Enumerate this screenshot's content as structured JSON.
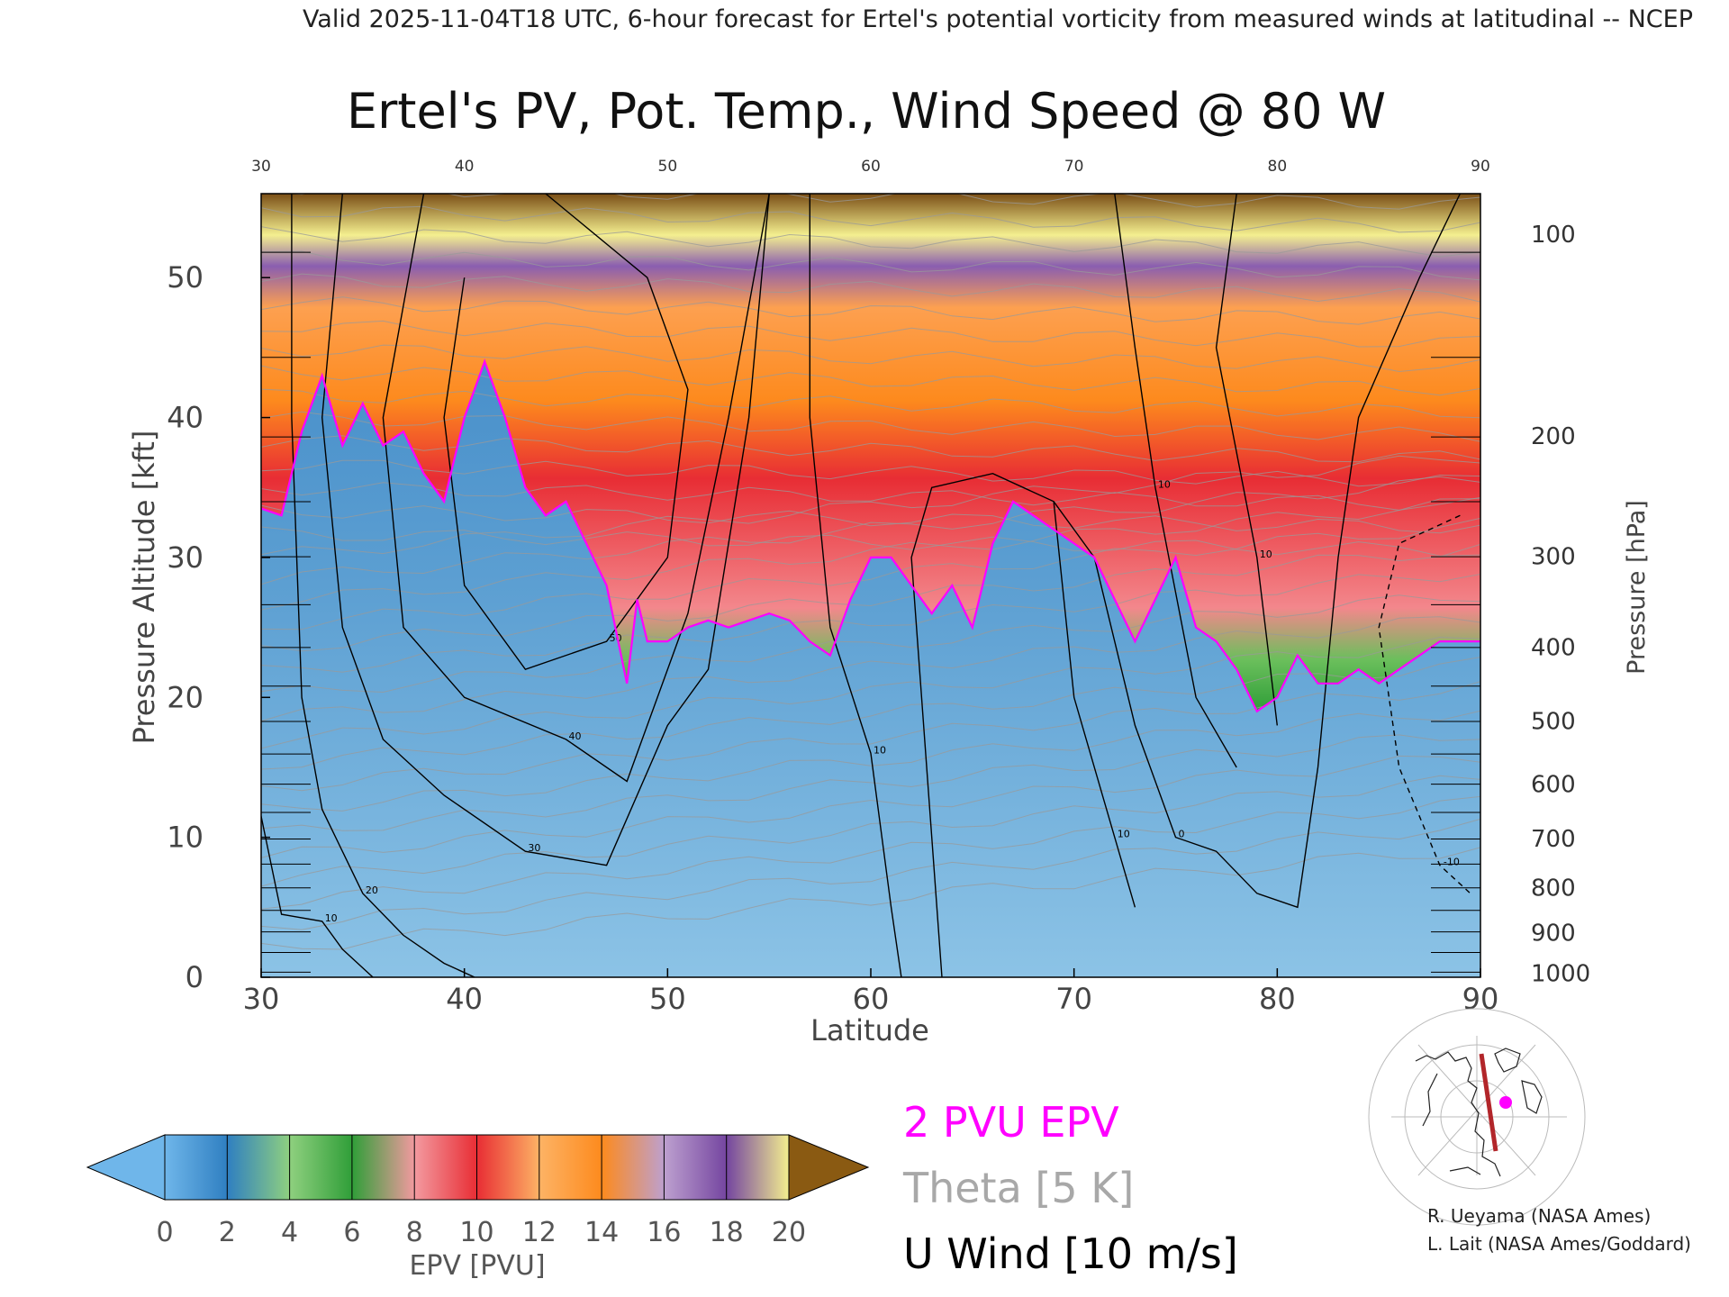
{
  "header": "Valid 2025-11-04T18 UTC, 6-hour forecast for Ertel's potential vorticity from measured winds at latitudinal -- NCEP",
  "title": "Ertel's PV, Pot. Temp., Wind Speed @ 80 W",
  "chart_data": {
    "type": "heatmap",
    "xlabel": "Latitude",
    "ylabel_left": "Pressure Altitude [kft]",
    "ylabel_right": "Pressure [hPa]",
    "xlim": [
      30,
      90
    ],
    "ylim": [
      0,
      56
    ],
    "x_ticks": [
      "30",
      "40",
      "50",
      "60",
      "70",
      "80",
      "90"
    ],
    "top_ticks": [
      "30",
      "40",
      "50",
      "60",
      "70",
      "80",
      "90"
    ],
    "y_ticks": [
      "0",
      "10",
      "20",
      "30",
      "40",
      "50"
    ],
    "pressure_ticks": [
      {
        "label": "100",
        "kft": 53.1
      },
      {
        "label": "200",
        "kft": 38.7
      },
      {
        "label": "300",
        "kft": 30.1
      },
      {
        "label": "400",
        "kft": 23.6
      },
      {
        "label": "500",
        "kft": 18.3
      },
      {
        "label": "600",
        "kft": 13.8
      },
      {
        "label": "700",
        "kft": 9.9
      },
      {
        "label": "800",
        "kft": 6.4
      },
      {
        "label": "900",
        "kft": 3.2
      },
      {
        "label": "1000",
        "kft": 0.3
      }
    ],
    "pv2_boundary_kft": [
      {
        "lat": 30,
        "kft": 33.5
      },
      {
        "lat": 31,
        "kft": 33
      },
      {
        "lat": 32,
        "kft": 39
      },
      {
        "lat": 33,
        "kft": 43
      },
      {
        "lat": 34,
        "kft": 38
      },
      {
        "lat": 35,
        "kft": 41
      },
      {
        "lat": 36,
        "kft": 38
      },
      {
        "lat": 37,
        "kft": 39
      },
      {
        "lat": 38,
        "kft": 36
      },
      {
        "lat": 39,
        "kft": 34
      },
      {
        "lat": 40,
        "kft": 40
      },
      {
        "lat": 41,
        "kft": 44
      },
      {
        "lat": 42,
        "kft": 40
      },
      {
        "lat": 43,
        "kft": 35
      },
      {
        "lat": 44,
        "kft": 33
      },
      {
        "lat": 45,
        "kft": 34
      },
      {
        "lat": 46,
        "kft": 31
      },
      {
        "lat": 47,
        "kft": 28
      },
      {
        "lat": 48,
        "kft": 21
      },
      {
        "lat": 48.5,
        "kft": 27
      },
      {
        "lat": 49,
        "kft": 24
      },
      {
        "lat": 50,
        "kft": 24
      },
      {
        "lat": 51,
        "kft": 25
      },
      {
        "lat": 52,
        "kft": 25.5
      },
      {
        "lat": 53,
        "kft": 25
      },
      {
        "lat": 54,
        "kft": 25.5
      },
      {
        "lat": 55,
        "kft": 26
      },
      {
        "lat": 56,
        "kft": 25.5
      },
      {
        "lat": 57,
        "kft": 24
      },
      {
        "lat": 58,
        "kft": 23
      },
      {
        "lat": 59,
        "kft": 27
      },
      {
        "lat": 60,
        "kft": 30
      },
      {
        "lat": 61,
        "kft": 30
      },
      {
        "lat": 62,
        "kft": 28
      },
      {
        "lat": 63,
        "kft": 26
      },
      {
        "lat": 64,
        "kft": 28
      },
      {
        "lat": 65,
        "kft": 25
      },
      {
        "lat": 66,
        "kft": 31
      },
      {
        "lat": 67,
        "kft": 34
      },
      {
        "lat": 68,
        "kft": 33
      },
      {
        "lat": 69,
        "kft": 32
      },
      {
        "lat": 70,
        "kft": 31
      },
      {
        "lat": 71,
        "kft": 30
      },
      {
        "lat": 72,
        "kft": 27
      },
      {
        "lat": 73,
        "kft": 24
      },
      {
        "lat": 74,
        "kft": 27
      },
      {
        "lat": 75,
        "kft": 30
      },
      {
        "lat": 76,
        "kft": 25
      },
      {
        "lat": 77,
        "kft": 24
      },
      {
        "lat": 78,
        "kft": 22
      },
      {
        "lat": 79,
        "kft": 19
      },
      {
        "lat": 80,
        "kft": 20
      },
      {
        "lat": 81,
        "kft": 23
      },
      {
        "lat": 82,
        "kft": 21
      },
      {
        "lat": 83,
        "kft": 21
      },
      {
        "lat": 84,
        "kft": 22
      },
      {
        "lat": 85,
        "kft": 21
      },
      {
        "lat": 86,
        "kft": 22
      },
      {
        "lat": 87,
        "kft": 23
      },
      {
        "lat": 88,
        "kft": 24
      },
      {
        "lat": 89,
        "kft": 24
      },
      {
        "lat": 90,
        "kft": 24
      }
    ],
    "u_wind_contours": [
      {
        "label": "10",
        "points": [
          [
            30,
            11.5
          ],
          [
            31,
            4.5
          ],
          [
            33,
            4
          ],
          [
            34,
            2
          ],
          [
            35.5,
            0
          ]
        ]
      },
      {
        "label": "20",
        "points": [
          [
            31.5,
            56
          ],
          [
            31.5,
            40
          ],
          [
            32,
            20
          ],
          [
            33,
            12
          ],
          [
            35,
            6
          ],
          [
            37,
            3
          ],
          [
            39,
            1
          ],
          [
            40.5,
            0
          ]
        ]
      },
      {
        "label": "30",
        "points": [
          [
            34,
            56
          ],
          [
            33,
            40
          ],
          [
            34,
            25
          ],
          [
            36,
            17
          ],
          [
            39,
            13
          ],
          [
            43,
            9
          ],
          [
            47,
            8
          ],
          [
            50,
            18
          ],
          [
            52,
            22
          ],
          [
            54,
            40
          ],
          [
            55,
            56
          ]
        ]
      },
      {
        "label": "40",
        "points": [
          [
            38,
            56
          ],
          [
            36,
            40
          ],
          [
            37,
            25
          ],
          [
            40,
            20
          ],
          [
            45,
            17
          ],
          [
            48,
            14
          ],
          [
            51,
            26
          ],
          [
            53,
            40
          ],
          [
            55,
            56
          ]
        ]
      },
      {
        "label": "50",
        "points": [
          [
            40,
            50
          ],
          [
            39,
            40
          ],
          [
            40,
            28
          ],
          [
            43,
            22
          ],
          [
            47,
            24
          ],
          [
            50,
            30
          ],
          [
            51,
            42
          ],
          [
            49,
            50
          ],
          [
            44,
            56
          ]
        ]
      },
      {
        "label": "10",
        "points": [
          [
            57,
            56
          ],
          [
            57,
            40
          ],
          [
            58,
            25
          ],
          [
            60,
            16
          ],
          [
            61,
            5
          ],
          [
            61.5,
            0
          ]
        ]
      },
      {
        "label": "0",
        "points": [
          [
            63.5,
            0
          ],
          [
            63,
            10
          ],
          [
            62,
            30
          ],
          [
            63,
            35
          ],
          [
            66,
            36
          ],
          [
            69,
            34
          ],
          [
            71,
            30
          ],
          [
            73,
            18
          ],
          [
            75,
            10
          ],
          [
            77,
            9
          ],
          [
            79,
            6
          ],
          [
            81,
            5
          ],
          [
            82,
            15
          ],
          [
            83,
            30
          ],
          [
            84,
            40
          ],
          [
            87,
            50
          ],
          [
            89,
            56
          ]
        ]
      },
      {
        "label": "10",
        "points": [
          [
            69,
            34
          ],
          [
            70,
            20
          ],
          [
            72,
            10
          ],
          [
            73,
            5
          ]
        ]
      },
      {
        "label": "10",
        "points": [
          [
            72,
            56
          ],
          [
            73,
            45
          ],
          [
            74,
            35
          ],
          [
            76,
            20
          ],
          [
            78,
            15
          ]
        ]
      },
      {
        "label": "10",
        "points": [
          [
            78,
            56
          ],
          [
            77,
            45
          ],
          [
            79,
            30
          ],
          [
            80,
            18
          ]
        ]
      }
    ],
    "easterly_contour": {
      "label": "-10",
      "points": [
        [
          89,
          33
        ],
        [
          86,
          31
        ],
        [
          85,
          25
        ],
        [
          86,
          15
        ],
        [
          88,
          8
        ],
        [
          89.5,
          6
        ]
      ]
    },
    "colorbar": {
      "label": "EPV [PVU]",
      "ticks": [
        "0",
        "2",
        "4",
        "6",
        "8",
        "10",
        "12",
        "14",
        "16",
        "18",
        "20"
      ],
      "colors": [
        "#6fb6ea",
        "#2f7fc1",
        "#8fd07f",
        "#2f9e38",
        "#f39aa0",
        "#e82d34",
        "#fdb365",
        "#fd8a1d",
        "#bda0cf",
        "#7445a0",
        "#f4ef8f",
        "#8a5a12"
      ]
    },
    "legend": [
      {
        "text": "2 PVU EPV",
        "color": "#ff00ff"
      },
      {
        "text": "Theta [5 K]",
        "color": "#a0a0a0"
      },
      {
        "text": "U Wind [10 m/s]",
        "color": "#000000"
      }
    ]
  },
  "credits": [
    "R. Ueyama (NASA Ames)",
    "L. Lait (NASA Ames/Goddard)"
  ]
}
